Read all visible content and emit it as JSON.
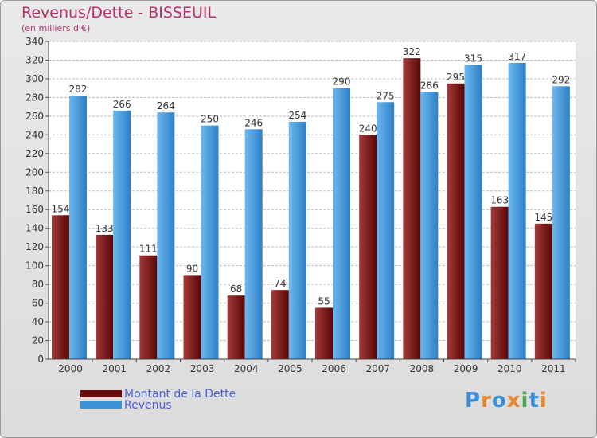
{
  "header": {
    "title": "Revenus/Dette - BISSEUIL",
    "subtitle": "(en milliers d'€)"
  },
  "legend": [
    {
      "label": "Montant de la Dette",
      "color": "#6b0d0d"
    },
    {
      "label": "Revenus",
      "color": "#3a94dc"
    }
  ],
  "logo": {
    "text": "Proxiti",
    "letter_colors": [
      "#3a8fd9",
      "#e8862a",
      "#3a8fd9",
      "#e8862a",
      "#4aa84a",
      "#3a8fd9",
      "#e8862a"
    ]
  },
  "colors": {
    "debt_light": "#a33a3a",
    "debt_dark": "#5a0606",
    "revenue_light": "#6db7ee",
    "revenue_dark": "#2e7fc7",
    "grid": "#bcbcbc",
    "axis_text": "#333333",
    "title": "#b4336a"
  },
  "chart_data": {
    "type": "bar",
    "categories": [
      "2000",
      "2001",
      "2002",
      "2003",
      "2004",
      "2005",
      "2006",
      "2007",
      "2008",
      "2009",
      "2010",
      "2011"
    ],
    "series": [
      {
        "name": "Montant de la Dette",
        "values": [
          154,
          133,
          111,
          90,
          68,
          74,
          55,
          240,
          322,
          295,
          163,
          145
        ]
      },
      {
        "name": "Revenus",
        "values": [
          282,
          266,
          264,
          250,
          246,
          254,
          290,
          275,
          286,
          315,
          317,
          292
        ]
      }
    ],
    "title": "Revenus/Dette - BISSEUIL",
    "subtitle": "(en milliers d'€)",
    "ylim": [
      0,
      340
    ],
    "y_ticks": [
      0,
      20,
      40,
      60,
      80,
      100,
      120,
      140,
      160,
      180,
      200,
      220,
      240,
      260,
      280,
      300,
      320,
      340
    ],
    "grid": true,
    "legend_position": "bottom-left",
    "data_labels": true
  }
}
